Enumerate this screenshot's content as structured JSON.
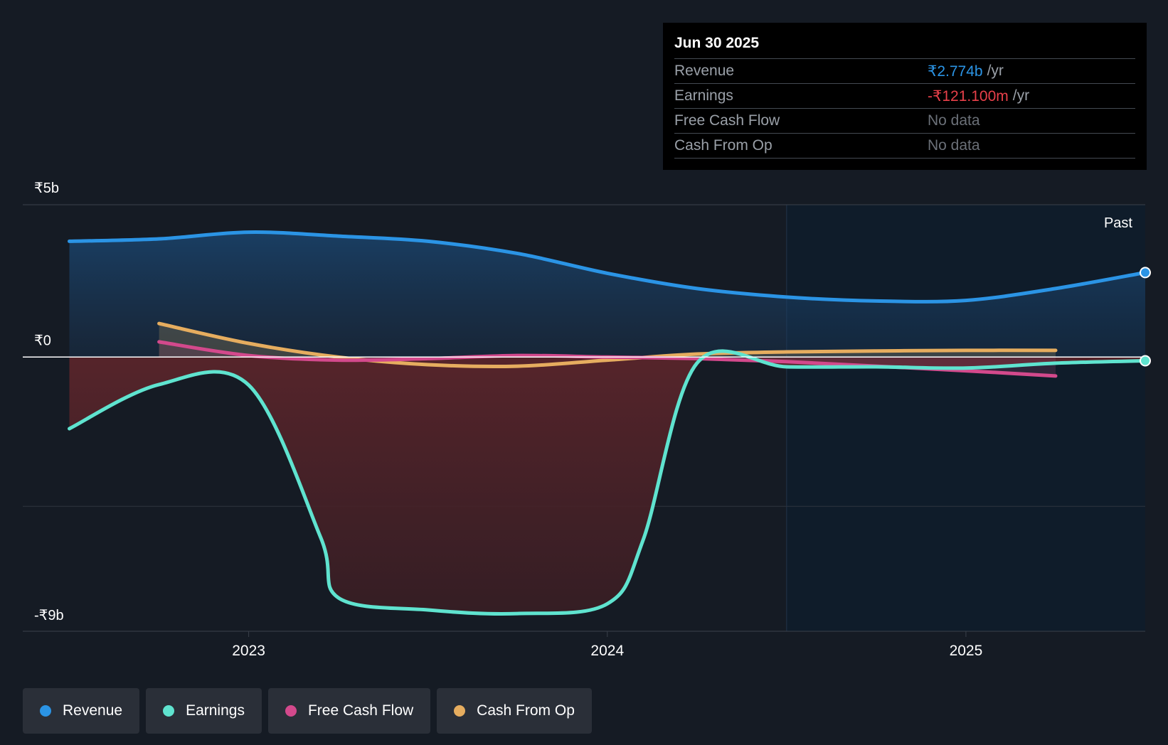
{
  "tooltip": {
    "date": "Jun 30 2025",
    "rows": [
      {
        "label": "Revenue",
        "value": "₹2.774b",
        "unit": "/yr",
        "color": "#2b94e5"
      },
      {
        "label": "Earnings",
        "value": "-₹121.100m",
        "unit": "/yr",
        "color": "#e8404a"
      },
      {
        "label": "Free Cash Flow",
        "value": "No data",
        "unit": "",
        "color": "#6b7078"
      },
      {
        "label": "Cash From Op",
        "value": "No data",
        "unit": "",
        "color": "#6b7078"
      }
    ]
  },
  "legend": [
    {
      "label": "Revenue",
      "color": "#2b94e5"
    },
    {
      "label": "Earnings",
      "color": "#5fe3cf"
    },
    {
      "label": "Free Cash Flow",
      "color": "#d3498c"
    },
    {
      "label": "Cash From Op",
      "color": "#e6ad5f"
    }
  ],
  "chart_data": {
    "type": "line",
    "title": "",
    "xlabel": "",
    "ylabel": "",
    "y_unit_label_top": "₹5b",
    "y_unit_label_zero": "₹0",
    "y_unit_label_bottom": "-₹9b",
    "ylim": [
      -9,
      5
    ],
    "xlim": [
      2022.37,
      2025.5
    ],
    "xticks": [
      2023,
      2024,
      2025
    ],
    "xtick_labels": [
      "2023",
      "2024",
      "2025"
    ],
    "past_label": "Past",
    "past_region_start": 2024.5,
    "series": [
      {
        "name": "Revenue",
        "color": "#2b94e5",
        "points": [
          [
            2022.5,
            3.8
          ],
          [
            2022.75,
            3.88
          ],
          [
            2023.0,
            4.1
          ],
          [
            2023.25,
            3.97
          ],
          [
            2023.5,
            3.8
          ],
          [
            2023.75,
            3.4
          ],
          [
            2024.0,
            2.75
          ],
          [
            2024.25,
            2.25
          ],
          [
            2024.5,
            1.97
          ],
          [
            2024.75,
            1.84
          ],
          [
            2025.0,
            1.86
          ],
          [
            2025.25,
            2.25
          ],
          [
            2025.5,
            2.774
          ]
        ]
      },
      {
        "name": "Earnings",
        "color": "#5fe3cf",
        "points": [
          [
            2022.5,
            -2.35
          ],
          [
            2022.75,
            -0.9
          ],
          [
            2023.0,
            -0.92
          ],
          [
            2023.2,
            -5.9
          ],
          [
            2023.25,
            -7.9
          ],
          [
            2023.5,
            -8.3
          ],
          [
            2023.75,
            -8.42
          ],
          [
            2024.0,
            -8.1
          ],
          [
            2024.1,
            -6.0
          ],
          [
            2024.25,
            -0.2
          ],
          [
            2024.5,
            -0.32
          ],
          [
            2024.75,
            -0.32
          ],
          [
            2025.0,
            -0.36
          ],
          [
            2025.25,
            -0.2
          ],
          [
            2025.5,
            -0.1211
          ]
        ]
      },
      {
        "name": "Free Cash Flow",
        "color": "#d3498c",
        "points": [
          [
            2022.75,
            0.5
          ],
          [
            2023.0,
            0.05
          ],
          [
            2023.25,
            -0.1
          ],
          [
            2023.5,
            -0.05
          ],
          [
            2023.75,
            0.05
          ],
          [
            2024.0,
            0.0
          ],
          [
            2024.25,
            -0.05
          ],
          [
            2024.5,
            -0.15
          ],
          [
            2024.75,
            -0.3
          ],
          [
            2025.0,
            -0.45
          ],
          [
            2025.25,
            -0.62
          ]
        ]
      },
      {
        "name": "Cash From Op",
        "color": "#e6ad5f",
        "points": [
          [
            2022.75,
            1.1
          ],
          [
            2023.0,
            0.45
          ],
          [
            2023.25,
            0.0
          ],
          [
            2023.5,
            -0.25
          ],
          [
            2023.75,
            -0.3
          ],
          [
            2024.0,
            -0.1
          ],
          [
            2024.25,
            0.1
          ],
          [
            2024.5,
            0.17
          ],
          [
            2024.75,
            0.2
          ],
          [
            2025.0,
            0.22
          ],
          [
            2025.25,
            0.22
          ]
        ]
      }
    ]
  }
}
